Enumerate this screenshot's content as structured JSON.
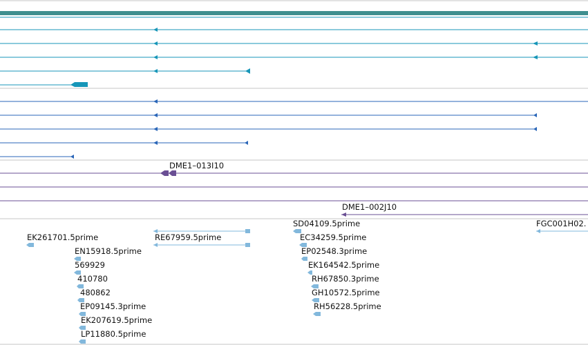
{
  "colors": {
    "teal": "#3f8f8f",
    "cyan": "#1796b8",
    "blue": "#2a66b8",
    "purple": "#6a4f94",
    "lightblue": "#82b8dc",
    "separator": "#c4c4c4"
  },
  "tracks": {
    "clones": [
      {
        "name": "DME1–013I10"
      },
      {
        "name": "DME1–002J10"
      }
    ],
    "ests_left": [
      {
        "name": "EK261701.5prime"
      },
      {
        "name": "RE67959.5prime"
      },
      {
        "name": "EN15918.5prime"
      },
      {
        "name": "569929"
      },
      {
        "name": "410780"
      },
      {
        "name": "480862"
      },
      {
        "name": "EP09145.3prime"
      },
      {
        "name": "EK207619.5prime"
      },
      {
        "name": "LP11880.5prime"
      }
    ],
    "ests_right": [
      {
        "name": "SD04109.5prime"
      },
      {
        "name": "EC34259.5prime"
      },
      {
        "name": "EP02548.3prime"
      },
      {
        "name": "EK164542.5prime"
      },
      {
        "name": "RH67850.3prime"
      },
      {
        "name": "GH10572.5prime"
      },
      {
        "name": "RH56228.5prime"
      },
      {
        "name": "FGC001H02."
      }
    ]
  }
}
